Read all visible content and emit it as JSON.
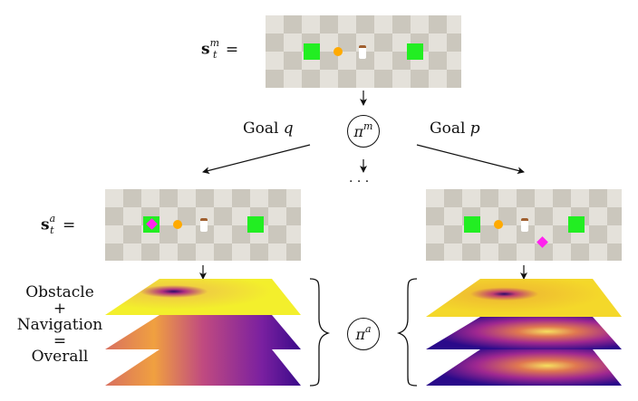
{
  "top": {
    "state_label": {
      "bold": "s",
      "sub": "t",
      "sup": "m",
      "eq": "="
    },
    "policy": {
      "symbol": "π",
      "sup": "m"
    }
  },
  "branches": {
    "left_goal": {
      "text": "Goal",
      "var": "q"
    },
    "right_goal": {
      "text": "Goal",
      "var": "p"
    },
    "ellipsis": "· · ·"
  },
  "middle": {
    "state_label": {
      "bold": "s",
      "sub": "t",
      "sup": "a",
      "eq": "="
    }
  },
  "bottom": {
    "stack_labels": [
      "Obstacle",
      "+",
      "Navigation",
      "=",
      "Overall"
    ],
    "policy": {
      "symbol": "π",
      "sup": "a"
    }
  },
  "colors": {
    "goal_green": "#22ee22",
    "agent_orange": "#ffaa00",
    "goal_marker_magenta": "#ff22ee",
    "tile_light": "#e4e1da",
    "tile_dark": "#cbc7bd"
  }
}
